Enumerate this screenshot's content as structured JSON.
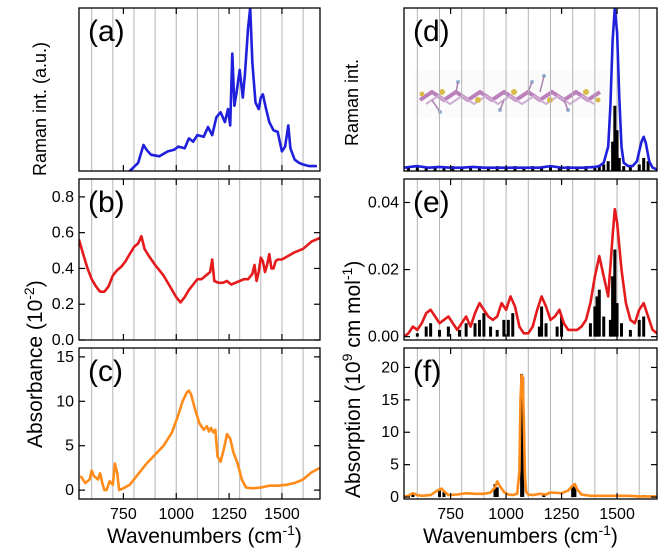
{
  "figure": {
    "xlabel_text": "Wavenumbers (cm",
    "xlabel_sup": "-1",
    "xlabel_close": ")",
    "left_raman_label": "Raman int. (a.u.)",
    "left_abs_label": "Absorbance (10",
    "left_abs_sup": "-2",
    "left_abs_close": ")",
    "right_raman_label": "Raman int.",
    "right_abs_label": "Absorption (10",
    "right_abs_sup": "9",
    "right_abs_unit": " cm mol",
    "right_abs_unit_sup": "-1",
    "right_abs_close": ")"
  },
  "chart_data": [
    {
      "type": "line",
      "panel": "(a)",
      "title": "(a)",
      "xlim": [
        540,
        1680
      ],
      "ylim": [
        0,
        1.0
      ],
      "xticks": [
        750,
        1000,
        1250,
        1500
      ],
      "yticks": [],
      "grid": true,
      "series": [
        {
          "color": "#1f1fdc",
          "x": [
            780,
            820,
            845,
            860,
            880,
            920,
            960,
            990,
            1010,
            1040,
            1060,
            1080,
            1100,
            1130,
            1150,
            1170,
            1190,
            1210,
            1230,
            1245,
            1255,
            1265,
            1275,
            1285,
            1300,
            1315,
            1325,
            1340,
            1350,
            1360,
            1375,
            1390,
            1400,
            1410,
            1425,
            1440,
            1460,
            1480,
            1490,
            1500,
            1515,
            1530,
            1540,
            1560,
            1580,
            1600,
            1630,
            1660
          ],
          "y": [
            0.0,
            0.05,
            0.16,
            0.13,
            0.1,
            0.09,
            0.12,
            0.13,
            0.15,
            0.14,
            0.2,
            0.18,
            0.22,
            0.21,
            0.27,
            0.22,
            0.33,
            0.36,
            0.3,
            0.38,
            0.28,
            0.72,
            0.4,
            0.48,
            0.62,
            0.45,
            0.6,
            0.88,
            1.0,
            0.66,
            0.42,
            0.38,
            0.45,
            0.47,
            0.38,
            0.3,
            0.25,
            0.24,
            0.18,
            0.12,
            0.15,
            0.28,
            0.14,
            0.07,
            0.05,
            0.04,
            0.03,
            0.03
          ]
        }
      ]
    },
    {
      "type": "line",
      "panel": "(b)",
      "title": "(b)",
      "xlim": [
        540,
        1680
      ],
      "ylim": [
        0,
        0.9
      ],
      "xticks": [
        750,
        1000,
        1250,
        1500
      ],
      "yticks": [
        0.0,
        0.2,
        0.4,
        0.6,
        0.8
      ],
      "ytick_labels": [
        "0.0",
        "0.2",
        "0.4",
        "0.6",
        "0.8"
      ],
      "grid": true,
      "series": [
        {
          "color": "#e41a1c",
          "x": [
            540,
            560,
            580,
            600,
            620,
            640,
            660,
            680,
            700,
            720,
            740,
            760,
            780,
            800,
            820,
            835,
            850,
            870,
            900,
            940,
            980,
            1000,
            1020,
            1040,
            1060,
            1080,
            1100,
            1120,
            1140,
            1160,
            1170,
            1180,
            1200,
            1220,
            1240,
            1260,
            1280,
            1300,
            1320,
            1340,
            1360,
            1370,
            1380,
            1390,
            1400,
            1410,
            1420,
            1430,
            1440,
            1450,
            1460,
            1470,
            1480,
            1500,
            1530,
            1560,
            1600,
            1640,
            1680
          ],
          "y": [
            0.56,
            0.48,
            0.4,
            0.34,
            0.3,
            0.27,
            0.27,
            0.3,
            0.36,
            0.39,
            0.41,
            0.44,
            0.48,
            0.52,
            0.54,
            0.58,
            0.51,
            0.47,
            0.42,
            0.36,
            0.28,
            0.24,
            0.21,
            0.24,
            0.28,
            0.31,
            0.34,
            0.34,
            0.36,
            0.38,
            0.45,
            0.33,
            0.32,
            0.32,
            0.33,
            0.31,
            0.32,
            0.33,
            0.34,
            0.34,
            0.37,
            0.42,
            0.33,
            0.38,
            0.46,
            0.44,
            0.38,
            0.42,
            0.48,
            0.4,
            0.4,
            0.44,
            0.45,
            0.45,
            0.47,
            0.49,
            0.51,
            0.55,
            0.57
          ]
        }
      ]
    },
    {
      "type": "line",
      "panel": "(c)",
      "title": "(c)",
      "xlim": [
        540,
        1680
      ],
      "ylim": [
        -1,
        16
      ],
      "xticks": [
        750,
        1000,
        1250,
        1500
      ],
      "xtick_labels": [
        "750",
        "1000",
        "1250",
        "1500"
      ],
      "yticks": [
        0,
        5,
        10,
        15
      ],
      "ytick_labels": [
        "0",
        "5",
        "10",
        "15"
      ],
      "grid": true,
      "series": [
        {
          "color": "#ff8c1a",
          "x": [
            550,
            570,
            590,
            600,
            610,
            630,
            640,
            650,
            660,
            670,
            685,
            700,
            710,
            720,
            730,
            750,
            780,
            820,
            860,
            900,
            940,
            980,
            1010,
            1030,
            1050,
            1060,
            1070,
            1090,
            1110,
            1130,
            1145,
            1155,
            1165,
            1175,
            1185,
            1195,
            1210,
            1225,
            1240,
            1255,
            1270,
            1290,
            1310,
            1330,
            1360,
            1400,
            1440,
            1480,
            1520,
            1560,
            1600,
            1640,
            1680
          ],
          "y": [
            1.5,
            0.8,
            1.2,
            2.2,
            1.6,
            1.2,
            1.9,
            0.8,
            0.0,
            0.0,
            1.0,
            0.6,
            3.0,
            2.0,
            0.0,
            0.2,
            0.6,
            1.8,
            3.0,
            4.0,
            5.0,
            6.5,
            8.5,
            10.0,
            11.0,
            11.2,
            10.8,
            9.0,
            7.5,
            6.8,
            7.2,
            6.6,
            7.0,
            6.5,
            6.8,
            3.8,
            3.2,
            4.6,
            6.3,
            5.8,
            4.3,
            3.0,
            1.2,
            0.3,
            0.2,
            0.3,
            0.5,
            0.5,
            0.6,
            0.8,
            1.2,
            2.0,
            2.5
          ]
        }
      ]
    },
    {
      "type": "line",
      "panel": "(d)",
      "title": "(d)",
      "xlim": [
        540,
        1680
      ],
      "ylim": [
        0,
        1.0
      ],
      "xticks": [
        750,
        1000,
        1250,
        1500
      ],
      "yticks": [],
      "grid": true,
      "series": [
        {
          "color": "#1f1fdc",
          "x": [
            540,
            600,
            650,
            700,
            750,
            800,
            850,
            900,
            950,
            1000,
            1050,
            1100,
            1150,
            1200,
            1250,
            1300,
            1350,
            1400,
            1420,
            1440,
            1460,
            1470,
            1480,
            1490,
            1500,
            1510,
            1520,
            1530,
            1550,
            1570,
            1590,
            1600,
            1610,
            1620,
            1630,
            1645,
            1660,
            1680
          ],
          "y": [
            0.02,
            0.03,
            0.02,
            0.025,
            0.02,
            0.02,
            0.025,
            0.02,
            0.02,
            0.02,
            0.02,
            0.02,
            0.02,
            0.03,
            0.02,
            0.02,
            0.02,
            0.025,
            0.03,
            0.05,
            0.15,
            0.4,
            0.8,
            1.0,
            0.85,
            0.45,
            0.15,
            0.05,
            0.03,
            0.03,
            0.06,
            0.12,
            0.18,
            0.21,
            0.17,
            0.06,
            0.02,
            0.01
          ]
        }
      ],
      "sticks": {
        "x": [
          560,
          600,
          640,
          680,
          720,
          760,
          800,
          840,
          880,
          920,
          960,
          1000,
          1040,
          1080,
          1120,
          1160,
          1200,
          1240,
          1280,
          1320,
          1360,
          1400,
          1420,
          1440,
          1460,
          1480,
          1490,
          1500,
          1510,
          1530,
          1560,
          1600,
          1620,
          1640
        ],
        "y": [
          0.02,
          0.03,
          0.02,
          0.03,
          0.02,
          0.03,
          0.02,
          0.03,
          0.03,
          0.02,
          0.03,
          0.02,
          0.03,
          0.02,
          0.03,
          0.02,
          0.03,
          0.02,
          0.03,
          0.02,
          0.03,
          0.02,
          0.03,
          0.04,
          0.06,
          0.18,
          0.4,
          0.25,
          0.08,
          0.03,
          0.03,
          0.04,
          0.08,
          0.06
        ]
      }
    },
    {
      "type": "line",
      "panel": "(e)",
      "title": "(e)",
      "xlim": [
        540,
        1680
      ],
      "ylim": [
        -0.001,
        0.047
      ],
      "xticks": [
        750,
        1000,
        1250,
        1500
      ],
      "yticks": [
        0.0,
        0.02,
        0.04
      ],
      "ytick_labels": [
        "0.00",
        "0.02",
        "0.04"
      ],
      "grid": true,
      "series": [
        {
          "color": "#e41a1c",
          "x": [
            540,
            560,
            580,
            600,
            620,
            640,
            660,
            680,
            700,
            720,
            740,
            760,
            780,
            800,
            820,
            840,
            860,
            880,
            900,
            920,
            940,
            960,
            980,
            1000,
            1020,
            1040,
            1060,
            1080,
            1100,
            1120,
            1140,
            1160,
            1180,
            1200,
            1220,
            1240,
            1260,
            1280,
            1300,
            1320,
            1340,
            1360,
            1380,
            1400,
            1420,
            1440,
            1460,
            1480,
            1490,
            1500,
            1520,
            1540,
            1560,
            1580,
            1600,
            1620,
            1640,
            1660,
            1680
          ],
          "y": [
            0.0,
            0.001,
            0.003,
            0.002,
            0.004,
            0.007,
            0.008,
            0.006,
            0.004,
            0.005,
            0.006,
            0.004,
            0.002,
            0.004,
            0.006,
            0.003,
            0.007,
            0.01,
            0.008,
            0.006,
            0.005,
            0.006,
            0.01,
            0.008,
            0.012,
            0.009,
            0.003,
            0.001,
            0.001,
            0.003,
            0.008,
            0.012,
            0.009,
            0.005,
            0.006,
            0.008,
            0.004,
            0.002,
            0.002,
            0.002,
            0.003,
            0.005,
            0.01,
            0.018,
            0.024,
            0.018,
            0.012,
            0.03,
            0.038,
            0.034,
            0.02,
            0.01,
            0.005,
            0.004,
            0.008,
            0.01,
            0.006,
            0.002,
            0.001
          ]
        }
      ],
      "sticks": {
        "x": [
          600,
          640,
          660,
          700,
          740,
          790,
          820,
          860,
          880,
          900,
          930,
          960,
          990,
          1010,
          1030,
          1150,
          1160,
          1180,
          1230,
          1250,
          1380,
          1400,
          1410,
          1420,
          1440,
          1470,
          1480,
          1490,
          1500,
          1520,
          1560,
          1600,
          1620
        ],
        "y": [
          0.001,
          0.003,
          0.004,
          0.002,
          0.003,
          0.002,
          0.004,
          0.004,
          0.005,
          0.007,
          0.003,
          0.002,
          0.005,
          0.005,
          0.007,
          0.003,
          0.009,
          0.004,
          0.003,
          0.006,
          0.004,
          0.009,
          0.012,
          0.014,
          0.006,
          0.005,
          0.018,
          0.026,
          0.01,
          0.004,
          0.002,
          0.005,
          0.006
        ]
      }
    },
    {
      "type": "line",
      "panel": "(f)",
      "title": "(f)",
      "xlim": [
        540,
        1680
      ],
      "ylim": [
        -0.3,
        23
      ],
      "xticks": [
        750,
        1000,
        1250,
        1500
      ],
      "xtick_labels": [
        "750",
        "1000",
        "1250",
        "1500"
      ],
      "yticks": [
        0,
        5,
        10,
        15,
        20
      ],
      "ytick_labels": [
        "0",
        "5",
        "10",
        "15",
        "20"
      ],
      "grid": true,
      "series": [
        {
          "color": "#ff8c1a",
          "x": [
            540,
            560,
            580,
            600,
            620,
            660,
            690,
            710,
            720,
            740,
            780,
            820,
            860,
            900,
            930,
            950,
            960,
            970,
            990,
            1010,
            1030,
            1050,
            1060,
            1065,
            1070,
            1075,
            1080,
            1085,
            1090,
            1100,
            1120,
            1150,
            1180,
            1200,
            1250,
            1280,
            1300,
            1310,
            1320,
            1340,
            1380,
            1420,
            1460,
            1500,
            1550,
            1600,
            1640,
            1680
          ],
          "y": [
            0.1,
            0.2,
            0.6,
            0.3,
            0.2,
            0.3,
            1.0,
            1.3,
            0.9,
            0.3,
            0.4,
            0.6,
            0.5,
            0.5,
            0.7,
            1.5,
            2.4,
            1.8,
            0.8,
            0.4,
            0.3,
            0.5,
            4.0,
            15.0,
            18.8,
            18.5,
            12.0,
            3.0,
            0.8,
            0.4,
            0.3,
            0.5,
            0.4,
            0.7,
            0.6,
            1.0,
            1.8,
            2.0,
            1.2,
            0.4,
            0.2,
            0.2,
            0.2,
            0.2,
            0.2,
            0.1,
            0.1,
            0.1
          ]
        }
      ],
      "sticks": {
        "x": [
          580,
          700,
          720,
          950,
          960,
          1070,
          1075,
          1170,
          1300,
          1310,
          1620
        ],
        "y": [
          0.5,
          1.0,
          0.8,
          2.0,
          1.5,
          19.0,
          18.5,
          0.5,
          1.8,
          1.5,
          0.3
        ]
      }
    }
  ]
}
